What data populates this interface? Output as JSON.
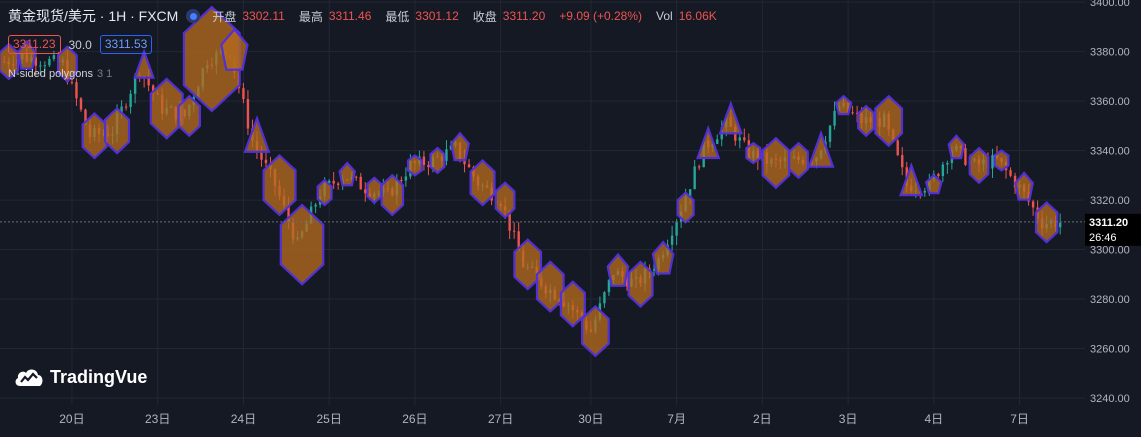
{
  "header": {
    "symbol": "黄金现货/美元 · 1H · FXCM",
    "open_label": "开盘",
    "open": "3302.11",
    "high_label": "最高",
    "high": "3311.46",
    "low_label": "最低",
    "low": "3301.12",
    "close_label": "收盘",
    "close": "3311.20",
    "change": "+9.09 (+0.28%)",
    "vol_label": "Vol",
    "vol": "16.06K"
  },
  "spread": {
    "bid": "3311.23",
    "spread": "30.0",
    "ask": "3311.53"
  },
  "indicator": {
    "name": "N-sided polygons",
    "params": "3 1"
  },
  "branding": {
    "name": "TradingVue"
  },
  "price_label": {
    "value": "3311.20",
    "countdown": "26:46"
  },
  "colors": {
    "background": "#151924",
    "up": "#26a69a",
    "down": "#ef5350",
    "poly_fill": "#b36a1e",
    "poly_stroke": "#5131d6"
  },
  "chart_data": {
    "type": "candlestick",
    "ylim": [
      3240,
      3400
    ],
    "y_ticks": [
      3240,
      3260,
      3280,
      3300,
      3320,
      3340,
      3360,
      3380,
      3400
    ],
    "y_tick_labels": [
      "3240.00",
      "3260.00",
      "3280.00",
      "3300.00",
      "3320.00",
      "3340.00",
      "3360.00",
      "3380.00",
      "3400.00"
    ],
    "x_tick_labels": [
      "20日",
      "23日",
      "24日",
      "25日",
      "26日",
      "27日",
      "30日",
      "7月",
      "2日",
      "3日",
      "4日",
      "7日"
    ],
    "x_tick_index": [
      15,
      34,
      53,
      72,
      91,
      110,
      130,
      149,
      168,
      187,
      206,
      225
    ],
    "last_price": 3311.2,
    "polygons": [
      {
        "i": 1,
        "c": 3376,
        "r": 7,
        "n": 6
      },
      {
        "i": 5,
        "c": 3378,
        "r": 6,
        "n": 5
      },
      {
        "i": 14,
        "c": 3375,
        "r": 7,
        "n": 6
      },
      {
        "i": 20,
        "c": 3346,
        "r": 9,
        "n": 6
      },
      {
        "i": 25,
        "c": 3348,
        "r": 9,
        "n": 6
      },
      {
        "i": 31,
        "c": 3373,
        "r": 7,
        "n": 3
      },
      {
        "i": 36,
        "c": 3357,
        "r": 12,
        "n": 6
      },
      {
        "i": 41,
        "c": 3354,
        "r": 8,
        "n": 6
      },
      {
        "i": 46,
        "c": 3377,
        "r": 21,
        "n": 6
      },
      {
        "i": 51,
        "c": 3380,
        "r": 9,
        "n": 5
      },
      {
        "i": 56,
        "c": 3344,
        "r": 9,
        "n": 3
      },
      {
        "i": 61,
        "c": 3326,
        "r": 12,
        "n": 6
      },
      {
        "i": 66,
        "c": 3302,
        "r": 16,
        "n": 6
      },
      {
        "i": 71,
        "c": 3323,
        "r": 5,
        "n": 6
      },
      {
        "i": 76,
        "c": 3330,
        "r": 5,
        "n": 5
      },
      {
        "i": 82,
        "c": 3324,
        "r": 5,
        "n": 6
      },
      {
        "i": 86,
        "c": 3322,
        "r": 8,
        "n": 6
      },
      {
        "i": 91,
        "c": 3334,
        "r": 4,
        "n": 6
      },
      {
        "i": 96,
        "c": 3336,
        "r": 5,
        "n": 6
      },
      {
        "i": 101,
        "c": 3341,
        "r": 6,
        "n": 5
      },
      {
        "i": 106,
        "c": 3327,
        "r": 9,
        "n": 6
      },
      {
        "i": 111,
        "c": 3320,
        "r": 7,
        "n": 6
      },
      {
        "i": 116,
        "c": 3294,
        "r": 10,
        "n": 6
      },
      {
        "i": 121,
        "c": 3285,
        "r": 10,
        "n": 6
      },
      {
        "i": 126,
        "c": 3278,
        "r": 9,
        "n": 6
      },
      {
        "i": 131,
        "c": 3267,
        "r": 10,
        "n": 6
      },
      {
        "i": 136,
        "c": 3291,
        "r": 7,
        "n": 5
      },
      {
        "i": 141,
        "c": 3286,
        "r": 9,
        "n": 6
      },
      {
        "i": 146,
        "c": 3296,
        "r": 7,
        "n": 5
      },
      {
        "i": 151,
        "c": 3317,
        "r": 6,
        "n": 6
      },
      {
        "i": 156,
        "c": 3341,
        "r": 8,
        "n": 3
      },
      {
        "i": 161,
        "c": 3351,
        "r": 8,
        "n": 3
      },
      {
        "i": 166,
        "c": 3339,
        "r": 4,
        "n": 6
      },
      {
        "i": 171,
        "c": 3335,
        "r": 10,
        "n": 6
      },
      {
        "i": 176,
        "c": 3336,
        "r": 7,
        "n": 6
      },
      {
        "i": 181,
        "c": 3338,
        "r": 9,
        "n": 3
      },
      {
        "i": 186,
        "c": 3358,
        "r": 4,
        "n": 5
      },
      {
        "i": 191,
        "c": 3352,
        "r": 6,
        "n": 6
      },
      {
        "i": 196,
        "c": 3352,
        "r": 10,
        "n": 6
      },
      {
        "i": 201,
        "c": 3326,
        "r": 8,
        "n": 3
      },
      {
        "i": 206,
        "c": 3326,
        "r": 4,
        "n": 5
      },
      {
        "i": 211,
        "c": 3341,
        "r": 5,
        "n": 5
      },
      {
        "i": 216,
        "c": 3334,
        "r": 7,
        "n": 6
      },
      {
        "i": 221,
        "c": 3336,
        "r": 4,
        "n": 6
      },
      {
        "i": 226,
        "c": 3325,
        "r": 6,
        "n": 5
      },
      {
        "i": 231,
        "c": 3311,
        "r": 8,
        "n": 6
      }
    ]
  }
}
